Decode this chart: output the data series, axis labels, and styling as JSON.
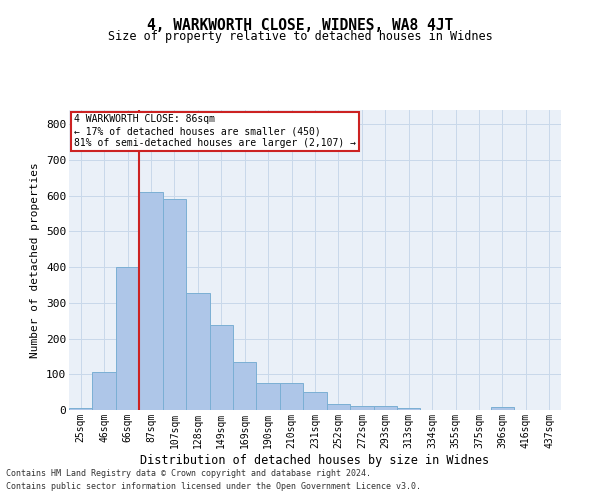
{
  "title": "4, WARKWORTH CLOSE, WIDNES, WA8 4JT",
  "subtitle": "Size of property relative to detached houses in Widnes",
  "xlabel": "Distribution of detached houses by size in Widnes",
  "ylabel": "Number of detached properties",
  "footnote1": "Contains HM Land Registry data © Crown copyright and database right 2024.",
  "footnote2": "Contains public sector information licensed under the Open Government Licence v3.0.",
  "categories": [
    "25sqm",
    "46sqm",
    "66sqm",
    "87sqm",
    "107sqm",
    "128sqm",
    "149sqm",
    "169sqm",
    "190sqm",
    "210sqm",
    "231sqm",
    "252sqm",
    "272sqm",
    "293sqm",
    "313sqm",
    "334sqm",
    "355sqm",
    "375sqm",
    "396sqm",
    "416sqm",
    "437sqm"
  ],
  "values": [
    5,
    107,
    400,
    610,
    590,
    328,
    238,
    135,
    75,
    75,
    50,
    18,
    12,
    12,
    5,
    0,
    0,
    0,
    8,
    0,
    0
  ],
  "bar_color": "#aec6e8",
  "bar_edge_color": "#7bafd4",
  "grid_color": "#c8d8ea",
  "bg_color": "#eaf0f8",
  "annotation_box_color": "#cc2222",
  "red_line_index": 3,
  "annotation_text1": "4 WARKWORTH CLOSE: 86sqm",
  "annotation_text2": "← 17% of detached houses are smaller (450)",
  "annotation_text3": "81% of semi-detached houses are larger (2,107) →",
  "ylim": [
    0,
    840
  ],
  "yticks": [
    0,
    100,
    200,
    300,
    400,
    500,
    600,
    700,
    800
  ]
}
